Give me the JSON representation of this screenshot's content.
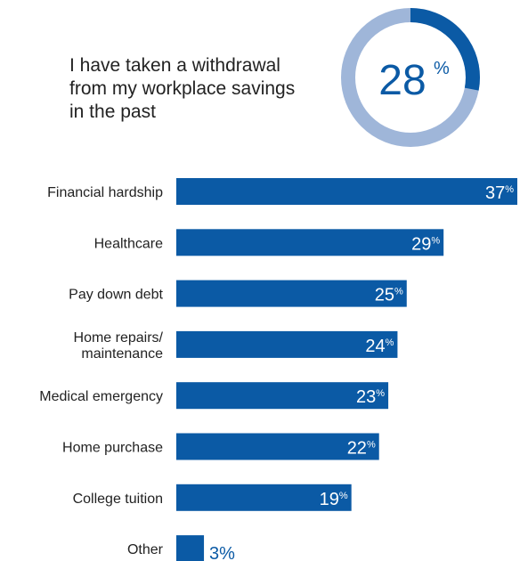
{
  "headline": {
    "lines": [
      "I have taken a withdrawal",
      "from my workplace savings",
      "in the past"
    ]
  },
  "donut": {
    "value": 28,
    "number": "28",
    "unit": "%"
  },
  "colors": {
    "bar": "#0b5aa5",
    "donut_fill": "#0b5aa5",
    "donut_track": "#9fb6d9",
    "label": "#222222",
    "value_inside": "#ffffff",
    "value_outside": "#0b5aa5"
  },
  "chart_data": {
    "type": "bar",
    "orientation": "horizontal",
    "categories": [
      [
        "Financial hardship"
      ],
      [
        "Healthcare"
      ],
      [
        "Pay down debt"
      ],
      [
        "Home repairs/",
        "maintenance"
      ],
      [
        "Medical emergency"
      ],
      [
        "Home purchase"
      ],
      [
        "College tuition"
      ],
      [
        "Other"
      ]
    ],
    "values": [
      37,
      29,
      25,
      24,
      23,
      22,
      19,
      3
    ],
    "value_labels": [
      "37",
      "29",
      "25",
      "24",
      "23",
      "22",
      "19",
      "3"
    ],
    "unit": "%",
    "xlim": [
      0,
      37
    ],
    "grid": false,
    "legend": "none"
  }
}
